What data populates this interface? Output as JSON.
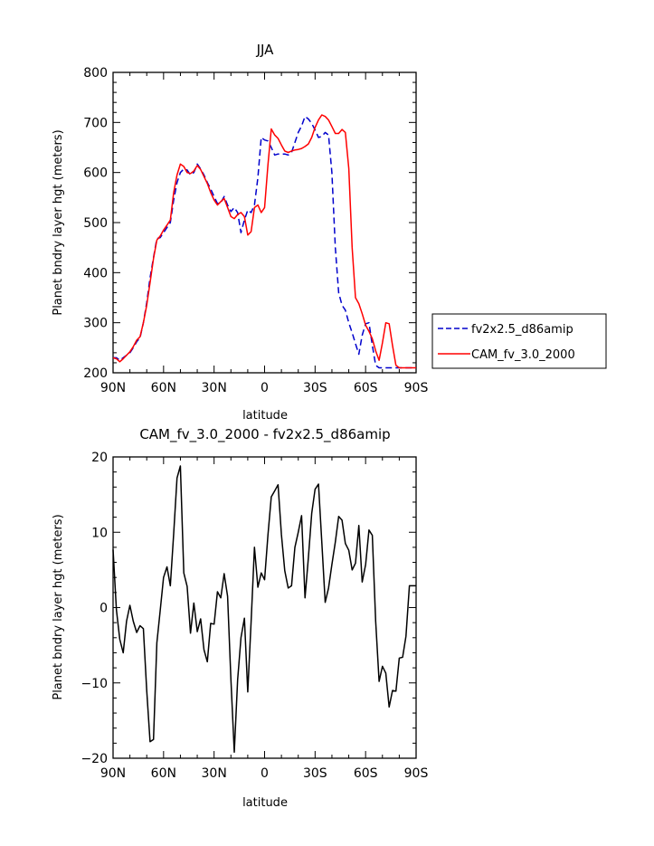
{
  "chart_data": [
    {
      "type": "line",
      "title": "JJA",
      "xlabel": "latitude",
      "ylabel": "Planet bndry layer hgt (meters)",
      "xlim": [
        90,
        -90
      ],
      "ylim": [
        200,
        800
      ],
      "xticks": [
        90,
        60,
        30,
        0,
        -30,
        -60,
        -90
      ],
      "xtick_labels": [
        "90N",
        "60N",
        "30N",
        "0",
        "30S",
        "60S",
        "90S"
      ],
      "yticks": [
        200,
        300,
        400,
        500,
        600,
        700,
        800
      ],
      "ytick_labels": [
        "200",
        "300",
        "400",
        "500",
        "600",
        "700",
        "800"
      ],
      "legend_position": "right",
      "series": [
        {
          "name": "fv2x2.5_d86amip",
          "color": "#0000cc",
          "dash": "dashed",
          "x": [
            90,
            88,
            86,
            84,
            82,
            80,
            78,
            76,
            74,
            72,
            70,
            68,
            66,
            64,
            62,
            60,
            58,
            56,
            54,
            52,
            50,
            48,
            46,
            44,
            42,
            40,
            38,
            36,
            34,
            32,
            30,
            28,
            26,
            24,
            22,
            20,
            18,
            16,
            14,
            12,
            10,
            8,
            6,
            4,
            2,
            0,
            -2,
            -4,
            -6,
            -8,
            -10,
            -12,
            -14,
            -16,
            -18,
            -20,
            -22,
            -24,
            -26,
            -28,
            -30,
            -32,
            -34,
            -36,
            -38,
            -40,
            -42,
            -44,
            -46,
            -48,
            -50,
            -52,
            -54,
            -56,
            -58,
            -60,
            -62,
            -64,
            -66,
            -68,
            -70,
            -72,
            -74,
            -76,
            -78,
            -80,
            -82,
            -84,
            -86,
            -88,
            -90
          ],
          "y": [
            230,
            230,
            225,
            230,
            235,
            240,
            250,
            262,
            270,
            300,
            340,
            390,
            430,
            468,
            470,
            480,
            490,
            500,
            545,
            580,
            600,
            607,
            605,
            595,
            600,
            617,
            607,
            595,
            580,
            567,
            552,
            538,
            540,
            552,
            535,
            522,
            530,
            520,
            480,
            505,
            525,
            520,
            535,
            590,
            670,
            665,
            663,
            650,
            635,
            637,
            637,
            637,
            635,
            640,
            660,
            680,
            693,
            712,
            707,
            698,
            685,
            670,
            672,
            680,
            675,
            600,
            450,
            360,
            335,
            325,
            300,
            280,
            258,
            237,
            275,
            298,
            300,
            255,
            215,
            210,
            210,
            210,
            210,
            210,
            210,
            210,
            210,
            210,
            210,
            210,
            210
          ],
          "values_note": ""
        },
        {
          "name": "CAM_fv_3.0_2000",
          "color": "#ff0000",
          "dash": "solid",
          "x": [
            90,
            88,
            86,
            84,
            82,
            80,
            78,
            76,
            74,
            72,
            70,
            68,
            66,
            64,
            62,
            60,
            58,
            56,
            54,
            52,
            50,
            48,
            46,
            44,
            42,
            40,
            38,
            36,
            34,
            32,
            30,
            28,
            26,
            24,
            22,
            20,
            18,
            16,
            14,
            12,
            10,
            8,
            6,
            4,
            2,
            0,
            -2,
            -4,
            -6,
            -8,
            -10,
            -12,
            -14,
            -16,
            -18,
            -20,
            -22,
            -24,
            -26,
            -28,
            -30,
            -32,
            -34,
            -36,
            -38,
            -40,
            -42,
            -44,
            -46,
            -48,
            -50,
            -52,
            -54,
            -56,
            -58,
            -60,
            -62,
            -64,
            -66,
            -68,
            -70,
            -72,
            -74,
            -76,
            -78,
            -80,
            -82,
            -84,
            -86,
            -88,
            -90
          ],
          "y": [
            230,
            228,
            222,
            228,
            235,
            242,
            252,
            265,
            272,
            300,
            335,
            380,
            428,
            465,
            473,
            485,
            495,
            505,
            560,
            595,
            617,
            612,
            600,
            598,
            603,
            614,
            606,
            592,
            578,
            560,
            545,
            535,
            542,
            548,
            530,
            512,
            508,
            516,
            520,
            512,
            475,
            482,
            530,
            535,
            520,
            530,
            615,
            687,
            675,
            668,
            655,
            643,
            640,
            643,
            645,
            646,
            648,
            652,
            657,
            670,
            690,
            705,
            715,
            712,
            705,
            692,
            678,
            678,
            686,
            680,
            608,
            450,
            350,
            338,
            318,
            295,
            283,
            268,
            244,
            225,
            260,
            300,
            298,
            255,
            215,
            210,
            210,
            210,
            210,
            210,
            210
          ]
        }
      ]
    },
    {
      "type": "line",
      "title": "CAM_fv_3.0_2000 - fv2x2.5_d86amip",
      "xlabel": "latitude",
      "ylabel": "Planet bndry layer hgt (meters)",
      "xlim": [
        90,
        -90
      ],
      "ylim": [
        -20,
        20
      ],
      "xticks": [
        90,
        60,
        30,
        0,
        -30,
        -60,
        -90
      ],
      "xtick_labels": [
        "90N",
        "60N",
        "30N",
        "0",
        "30S",
        "60S",
        "90S"
      ],
      "yticks": [
        -20,
        -10,
        0,
        10,
        20
      ],
      "ytick_labels": [
        "−20",
        "−10",
        "0",
        "10",
        "20"
      ],
      "series": [
        {
          "name": "",
          "color": "#000000",
          "dash": "solid",
          "x": [
            90,
            88,
            86,
            84,
            82,
            80,
            78,
            76,
            74,
            72,
            70,
            68,
            66,
            64,
            62,
            60,
            58,
            56,
            54,
            52,
            50,
            48,
            46,
            44,
            42,
            40,
            38,
            36,
            34,
            32,
            30,
            28,
            26,
            24,
            22,
            20,
            18,
            16,
            14,
            12,
            10,
            8,
            6,
            4,
            2,
            0,
            -2,
            -4,
            -6,
            -8,
            -10,
            -12,
            -14,
            -16,
            -18,
            -20,
            -22,
            -24,
            -26,
            -28,
            -30,
            -32,
            -34,
            -36,
            -38,
            -40,
            -42,
            -44,
            -46,
            -48,
            -50,
            -52,
            -54,
            -56,
            -58,
            -60,
            -62,
            -64,
            -66,
            -68,
            -70,
            -72,
            -74,
            -76,
            -78,
            -80,
            -82,
            -84,
            -86,
            -88,
            -90
          ],
          "y": [
            7.7,
            -0.3,
            -4.2,
            -6.0,
            -1.8,
            0.3,
            -1.8,
            -3.3,
            -2.4,
            -2.8,
            -11.0,
            -17.8,
            -17.5,
            -4.7,
            -0.4,
            4.0,
            5.4,
            2.9,
            9.8,
            17.2,
            18.8,
            4.6,
            2.8,
            -3.4,
            0.6,
            -3.2,
            -1.5,
            -5.6,
            -7.2,
            -2.1,
            -2.2,
            2.1,
            1.3,
            4.5,
            1.5,
            -9.6,
            -19.2,
            -9.6,
            -4.0,
            -1.4,
            -11.2,
            -1.9,
            8.0,
            2.7,
            4.6,
            3.7,
            9.6,
            14.7,
            15.5,
            16.3,
            9.7,
            4.9,
            2.6,
            2.9,
            8.0,
            10.0,
            12.2,
            1.3,
            6.6,
            12.5,
            15.7,
            16.4,
            8.6,
            0.7,
            2.6,
            5.7,
            8.7,
            12.1,
            11.6,
            8.5,
            7.6,
            5.0,
            5.9,
            10.9,
            3.4,
            5.7,
            10.3,
            9.6,
            -1.8,
            -9.8,
            -7.8,
            -8.7,
            -13.2,
            -11.0,
            -11.1,
            -6.7,
            -6.6,
            -3.8,
            2.9,
            2.9,
            2.9
          ]
        }
      ]
    }
  ]
}
